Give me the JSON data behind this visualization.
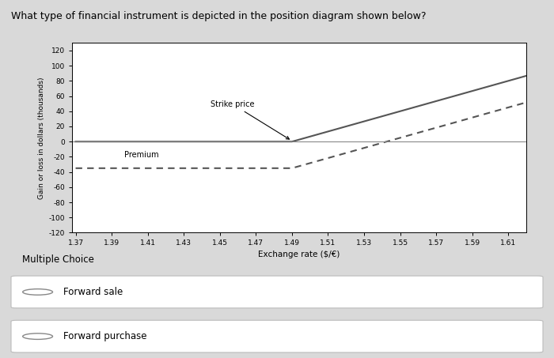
{
  "title": "What type of financial instrument is depicted in the position diagram shown below?",
  "xlabel": "Exchange rate ($/€)",
  "ylabel": "Gain or loss in dollars (thousands)",
  "x_ticks": [
    1.37,
    1.39,
    1.41,
    1.43,
    1.45,
    1.47,
    1.49,
    1.51,
    1.53,
    1.55,
    1.57,
    1.59,
    1.61
  ],
  "x_min": 1.37,
  "x_max": 1.62,
  "y_min": -120,
  "y_max": 130,
  "y_ticks": [
    -120,
    -100,
    -80,
    -60,
    -40,
    -20,
    0,
    20,
    40,
    60,
    80,
    100,
    120
  ],
  "strike_price": 1.49,
  "premium": -35,
  "slope": 667,
  "solid_color": "#555555",
  "dashed_color": "#555555",
  "background_color": "#d9d9d9",
  "plot_bg_color": "#ffffff",
  "strike_label": "Strike price",
  "premium_label": "Premium",
  "multiple_choice_label": "Multiple Choice",
  "choice1": "Forward sale",
  "choice2": "Forward purchase",
  "fig_width": 7.0,
  "fig_height": 4.53
}
